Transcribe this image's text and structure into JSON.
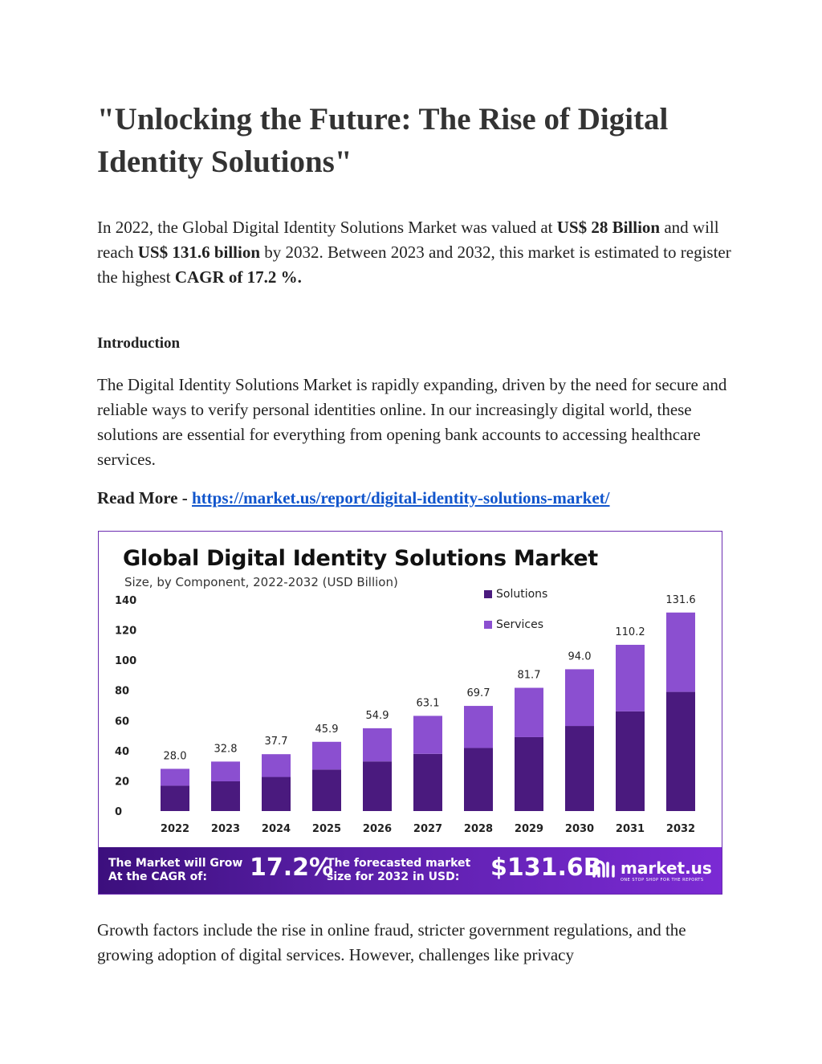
{
  "title": "\"Unlocking the Future: The Rise of Digital Identity Solutions\"",
  "para1": {
    "t1": "In 2022, the Global Digital Identity Solutions Market was valued at ",
    "b1": "US$ 28 Billion",
    "t2": " and will reach ",
    "b2": "US$ 131.6 billion",
    "t3": " by 2032. Between 2023 and 2032, this market is estimated to register the highest ",
    "b3": "CAGR of 17.2 %."
  },
  "intro_heading": "Introduction",
  "para2": "The Digital Identity Solutions Market is rapidly expanding, driven by the need for secure and reliable ways to verify personal identities online. In our increasingly digital world, these solutions are essential for everything from opening bank accounts to accessing healthcare services.",
  "read_more": {
    "label": "Read More - ",
    "url": "https://market.us/report/digital-identity-solutions-market/"
  },
  "para3": "Growth factors include the rise in online fraud, stricter government regulations, and the growing adoption of digital services. However, challenges like privacy",
  "chart_data": {
    "type": "bar",
    "stacked": true,
    "title": "Global Digital Identity Solutions Market",
    "subtitle": "Size, by Component, 2022-2032 (USD Billion)",
    "categories": [
      "2022",
      "2023",
      "2024",
      "2025",
      "2026",
      "2027",
      "2028",
      "2029",
      "2030",
      "2031",
      "2032"
    ],
    "totals": [
      "28.0",
      "32.8",
      "37.7",
      "45.9",
      "54.9",
      "63.1",
      "69.7",
      "81.7",
      "94.0",
      "110.2",
      "131.6"
    ],
    "series": [
      {
        "name": "Solutions",
        "color": "#4a1a7e",
        "values": [
          16.8,
          19.7,
          22.6,
          27.5,
          32.9,
          37.9,
          41.8,
          49.0,
          56.4,
          66.1,
          79.0
        ]
      },
      {
        "name": "Services",
        "color": "#8b4fd0",
        "values": [
          11.2,
          13.1,
          15.1,
          18.4,
          22.0,
          25.2,
          27.9,
          32.7,
          37.6,
          44.1,
          52.6
        ]
      }
    ],
    "yticks": [
      "0",
      "20",
      "40",
      "60",
      "80",
      "100",
      "120",
      "140"
    ],
    "ylim": [
      0,
      140
    ],
    "legend_position": "top-right",
    "grid": false
  },
  "banner": {
    "growth_label_1": "The Market will Grow",
    "growth_label_2": "At the CAGR of:",
    "cagr": "17.2%",
    "forecast_label_1": "The forecasted market",
    "forecast_label_2": "size for 2032 in USD:",
    "forecast_value": "$131.6B",
    "brand": "market.us",
    "brand_tagline": "ONE STOP SHOP FOR THE REPORTS",
    "brand_icon": "market-us-logo-icon"
  }
}
